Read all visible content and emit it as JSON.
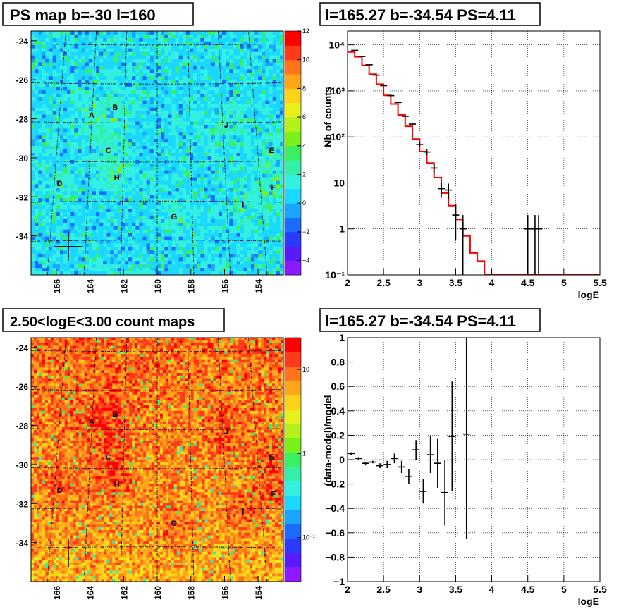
{
  "panels": {
    "tl": {
      "title": "PS map b=-30 l=160"
    },
    "tr": {
      "title": "l=165.27 b=-34.54 PS=4.11"
    },
    "bl": {
      "title": "2.50<logE<3.00 count maps"
    },
    "br": {
      "title": "l=165.27 b=-34.54 PS=4.11"
    }
  },
  "chart_data": [
    {
      "type": "heatmap",
      "title": "PS map b=-30 l=160",
      "x_ticks": [
        "166",
        "164",
        "162",
        "160",
        "158",
        "156",
        "154"
      ],
      "y_ticks": [
        "-24",
        "-26",
        "-28",
        "-30",
        "-32",
        "-34"
      ],
      "xlim": [
        167.5,
        152.5
      ],
      "ylim": [
        -36,
        -23.5
      ],
      "colorbar": {
        "ticks": [
          "12",
          "10",
          "8",
          "6",
          "4",
          "2",
          "0",
          "−2",
          "−4"
        ],
        "range": [
          -5,
          12
        ]
      },
      "sources": [
        {
          "label": "A",
          "l": 163.9,
          "b": -27.8
        },
        {
          "label": "B",
          "l": 162.5,
          "b": -27.4
        },
        {
          "label": "C",
          "l": 162.9,
          "b": -29.6
        },
        {
          "label": "D",
          "l": 165.8,
          "b": -31.3
        },
        {
          "label": "E",
          "l": 153.2,
          "b": -29.6
        },
        {
          "label": "F",
          "l": 153.1,
          "b": -31.5
        },
        {
          "label": "G",
          "l": 159.0,
          "b": -33.0
        },
        {
          "label": "H",
          "l": 162.4,
          "b": -31.0
        },
        {
          "label": "I",
          "l": 154.9,
          "b": -32.4
        },
        {
          "label": "J",
          "l": 155.9,
          "b": -28.3
        }
      ],
      "marker": {
        "l": 165.27,
        "b": -34.54
      },
      "colors": {
        "base": "#33e5f0"
      }
    },
    {
      "type": "line",
      "title": "l=165.27 b=-34.54 PS=4.11",
      "xlabel": "logE",
      "ylabel": "Nb of counts",
      "xlim": [
        2,
        5.5
      ],
      "ylim": [
        0.1,
        20000
      ],
      "y_log": true,
      "grid": true,
      "x_ticks": [
        "2",
        "2.5",
        "3",
        "3.5",
        "4",
        "4.5",
        "5",
        "5.5"
      ],
      "y_ticks": [
        "10⁻¹",
        "1",
        "10",
        "10²",
        "10³",
        "10⁴"
      ],
      "model": {
        "name": "model",
        "color": "#ff0000",
        "edges": [
          2.0,
          2.1,
          2.2,
          2.3,
          2.4,
          2.5,
          2.6,
          2.7,
          2.8,
          2.9,
          3.0,
          3.1,
          3.2,
          3.3,
          3.4,
          3.5,
          3.6,
          3.7,
          3.8,
          3.9,
          4.0,
          5.5
        ],
        "values": [
          7000,
          5500,
          3600,
          2300,
          1400,
          800,
          520,
          300,
          170,
          90,
          48,
          27,
          13,
          6,
          3.2,
          1.6,
          0.7,
          0.3,
          0.2,
          0.1,
          0.1
        ]
      },
      "data": [
        {
          "x": 2.1,
          "y": 7600
        },
        {
          "x": 2.2,
          "y": 5600
        },
        {
          "x": 2.3,
          "y": 3700
        },
        {
          "x": 2.4,
          "y": 2200
        },
        {
          "x": 2.5,
          "y": 1300
        },
        {
          "x": 2.6,
          "y": 790
        },
        {
          "x": 2.7,
          "y": 560
        },
        {
          "x": 2.8,
          "y": 280
        },
        {
          "x": 2.9,
          "y": 190
        },
        {
          "x": 3.0,
          "y": 68
        },
        {
          "x": 3.1,
          "y": 47
        },
        {
          "x": 3.2,
          "y": 21
        },
        {
          "x": 3.3,
          "y": 7.5
        },
        {
          "x": 3.4,
          "y": 7
        },
        {
          "x": 3.5,
          "y": 2
        },
        {
          "x": 3.6,
          "y": 1
        },
        {
          "x": 4.5,
          "y": 1
        },
        {
          "x": 4.6,
          "y": 1
        },
        {
          "x": 4.65,
          "y": 1
        }
      ]
    },
    {
      "type": "heatmap",
      "title": "2.50<logE<3.00 count maps",
      "x_ticks": [
        "166",
        "164",
        "162",
        "160",
        "158",
        "156",
        "154"
      ],
      "y_ticks": [
        "-24",
        "-26",
        "-28",
        "-30",
        "-32",
        "-34"
      ],
      "xlim": [
        167.5,
        152.5
      ],
      "ylim": [
        -36,
        -23.5
      ],
      "colorbar": {
        "ticks": [
          "10",
          "1",
          "10⁻¹"
        ],
        "scale": "log"
      },
      "sources": [
        {
          "label": "A",
          "l": 163.9,
          "b": -27.8
        },
        {
          "label": "B",
          "l": 162.5,
          "b": -27.4
        },
        {
          "label": "C",
          "l": 162.9,
          "b": -29.6
        },
        {
          "label": "D",
          "l": 165.8,
          "b": -31.3
        },
        {
          "label": "E",
          "l": 153.2,
          "b": -29.6
        },
        {
          "label": "F",
          "l": 153.1,
          "b": -31.5
        },
        {
          "label": "G",
          "l": 159.0,
          "b": -33.0
        },
        {
          "label": "H",
          "l": 162.4,
          "b": -31.0
        },
        {
          "label": "I",
          "l": 154.9,
          "b": -32.4
        },
        {
          "label": "J",
          "l": 155.9,
          "b": -28.3
        }
      ],
      "marker": {
        "l": 165.27,
        "b": -34.54
      },
      "colors": {
        "base": "#f07a1a"
      }
    },
    {
      "type": "scatter",
      "title": "l=165.27 b=-34.54 PS=4.11",
      "xlabel": "logE",
      "ylabel": "(data-model)/model",
      "xlim": [
        2,
        5.5
      ],
      "ylim": [
        -1,
        1
      ],
      "grid": true,
      "x_ticks": [
        "2",
        "2.5",
        "3",
        "3.5",
        "4",
        "4.5",
        "5",
        "5.5"
      ],
      "y_ticks": [
        "−1",
        "−0.8",
        "−0.6",
        "−0.4",
        "−0.2",
        "0",
        "0.2",
        "0.4",
        "0.6",
        "0.8",
        "1"
      ],
      "points": [
        {
          "x": 2.05,
          "y": 0.05,
          "err": 0.01
        },
        {
          "x": 2.15,
          "y": 0.01,
          "err": 0.01
        },
        {
          "x": 2.25,
          "y": -0.03,
          "err": 0.01
        },
        {
          "x": 2.35,
          "y": -0.02,
          "err": 0.01
        },
        {
          "x": 2.45,
          "y": -0.05,
          "err": 0.02
        },
        {
          "x": 2.55,
          "y": -0.04,
          "err": 0.03
        },
        {
          "x": 2.65,
          "y": 0.01,
          "err": 0.04
        },
        {
          "x": 2.75,
          "y": -0.06,
          "err": 0.05
        },
        {
          "x": 2.85,
          "y": -0.14,
          "err": 0.06
        },
        {
          "x": 2.95,
          "y": 0.08,
          "err": 0.08
        },
        {
          "x": 3.05,
          "y": -0.26,
          "err": 0.1
        },
        {
          "x": 3.15,
          "y": 0.04,
          "err": 0.15
        },
        {
          "x": 3.25,
          "y": -0.03,
          "err": 0.2
        },
        {
          "x": 3.35,
          "y": -0.27,
          "err": 0.27
        },
        {
          "x": 3.45,
          "y": 0.19,
          "err": 0.45
        },
        {
          "x": 3.65,
          "y": 0.21,
          "err": 0.86
        }
      ]
    }
  ]
}
